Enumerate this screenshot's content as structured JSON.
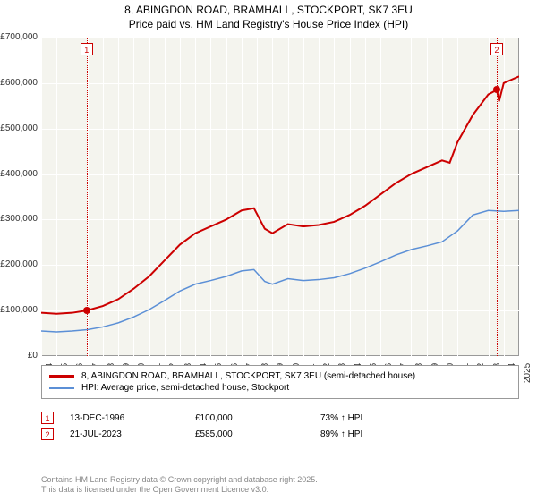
{
  "title_line1": "8, ABINGDON ROAD, BRAMHALL, STOCKPORT, SK7 3EU",
  "title_line2": "Price paid vs. HM Land Registry's House Price Index (HPI)",
  "chart": {
    "type": "line",
    "background_color": "#f4f4ee",
    "grid_color": "#ffffff",
    "axis_color": "#999999",
    "x_years": [
      1994,
      1995,
      1996,
      1997,
      1998,
      1999,
      2000,
      2001,
      2002,
      2003,
      2004,
      2005,
      2006,
      2007,
      2008,
      2009,
      2010,
      2011,
      2012,
      2013,
      2014,
      2015,
      2016,
      2017,
      2018,
      2019,
      2020,
      2021,
      2022,
      2023,
      2024,
      2025
    ],
    "y_ticks": [
      0,
      100000,
      200000,
      300000,
      400000,
      500000,
      600000,
      700000
    ],
    "y_tick_labels": [
      "£0",
      "£100,000",
      "£200,000",
      "£300,000",
      "£400,000",
      "£500,000",
      "£600,000",
      "£700,000"
    ],
    "ylim": [
      0,
      700000
    ],
    "series_red": {
      "label": "8, ABINGDON ROAD, BRAMHALL, STOCKPORT, SK7 3EU (semi-detached house)",
      "color": "#cc0000",
      "width": 2,
      "data": [
        [
          1994.0,
          95000
        ],
        [
          1995.0,
          93000
        ],
        [
          1996.0,
          95000
        ],
        [
          1996.95,
          100000
        ],
        [
          1998.0,
          110000
        ],
        [
          1999.0,
          125000
        ],
        [
          2000.0,
          148000
        ],
        [
          2001.0,
          175000
        ],
        [
          2002.0,
          210000
        ],
        [
          2003.0,
          245000
        ],
        [
          2004.0,
          270000
        ],
        [
          2005.0,
          285000
        ],
        [
          2006.0,
          300000
        ],
        [
          2007.0,
          320000
        ],
        [
          2007.8,
          325000
        ],
        [
          2008.5,
          280000
        ],
        [
          2009.0,
          270000
        ],
        [
          2010.0,
          290000
        ],
        [
          2011.0,
          285000
        ],
        [
          2012.0,
          288000
        ],
        [
          2013.0,
          295000
        ],
        [
          2014.0,
          310000
        ],
        [
          2015.0,
          330000
        ],
        [
          2016.0,
          355000
        ],
        [
          2017.0,
          380000
        ],
        [
          2018.0,
          400000
        ],
        [
          2019.0,
          415000
        ],
        [
          2020.0,
          430000
        ],
        [
          2020.5,
          425000
        ],
        [
          2021.0,
          470000
        ],
        [
          2022.0,
          530000
        ],
        [
          2023.0,
          575000
        ],
        [
          2023.55,
          585000
        ],
        [
          2023.7,
          560000
        ],
        [
          2024.0,
          600000
        ],
        [
          2025.0,
          615000
        ]
      ]
    },
    "series_blue": {
      "label": "HPI: Average price, semi-detached house, Stockport",
      "color": "#5b8fd6",
      "width": 1.5,
      "data": [
        [
          1994.0,
          55000
        ],
        [
          1995.0,
          53000
        ],
        [
          1996.0,
          55000
        ],
        [
          1997.0,
          58000
        ],
        [
          1998.0,
          64000
        ],
        [
          1999.0,
          73000
        ],
        [
          2000.0,
          86000
        ],
        [
          2001.0,
          102000
        ],
        [
          2002.0,
          122000
        ],
        [
          2003.0,
          143000
        ],
        [
          2004.0,
          158000
        ],
        [
          2005.0,
          166000
        ],
        [
          2006.0,
          175000
        ],
        [
          2007.0,
          187000
        ],
        [
          2007.8,
          190000
        ],
        [
          2008.5,
          164000
        ],
        [
          2009.0,
          158000
        ],
        [
          2010.0,
          170000
        ],
        [
          2011.0,
          166000
        ],
        [
          2012.0,
          168000
        ],
        [
          2013.0,
          172000
        ],
        [
          2014.0,
          181000
        ],
        [
          2015.0,
          193000
        ],
        [
          2016.0,
          207000
        ],
        [
          2017.0,
          222000
        ],
        [
          2018.0,
          234000
        ],
        [
          2019.0,
          242000
        ],
        [
          2020.0,
          251000
        ],
        [
          2021.0,
          275000
        ],
        [
          2022.0,
          310000
        ],
        [
          2023.0,
          320000
        ],
        [
          2024.0,
          318000
        ],
        [
          2025.0,
          320000
        ]
      ]
    },
    "markers": [
      {
        "n": "1",
        "year": 1996.95,
        "price": 100000
      },
      {
        "n": "2",
        "year": 2023.55,
        "price": 585000
      }
    ]
  },
  "legend": {
    "row1_color": "#cc0000",
    "row2_color": "#5b8fd6"
  },
  "details": {
    "rows": [
      {
        "n": "1",
        "date": "13-DEC-1996",
        "price": "£100,000",
        "pct": "73% ↑ HPI"
      },
      {
        "n": "2",
        "date": "21-JUL-2023",
        "price": "£585,000",
        "pct": "89% ↑ HPI"
      }
    ]
  },
  "credit_line1": "Contains HM Land Registry data © Crown copyright and database right 2025.",
  "credit_line2": "This data is licensed under the Open Government Licence v3.0."
}
